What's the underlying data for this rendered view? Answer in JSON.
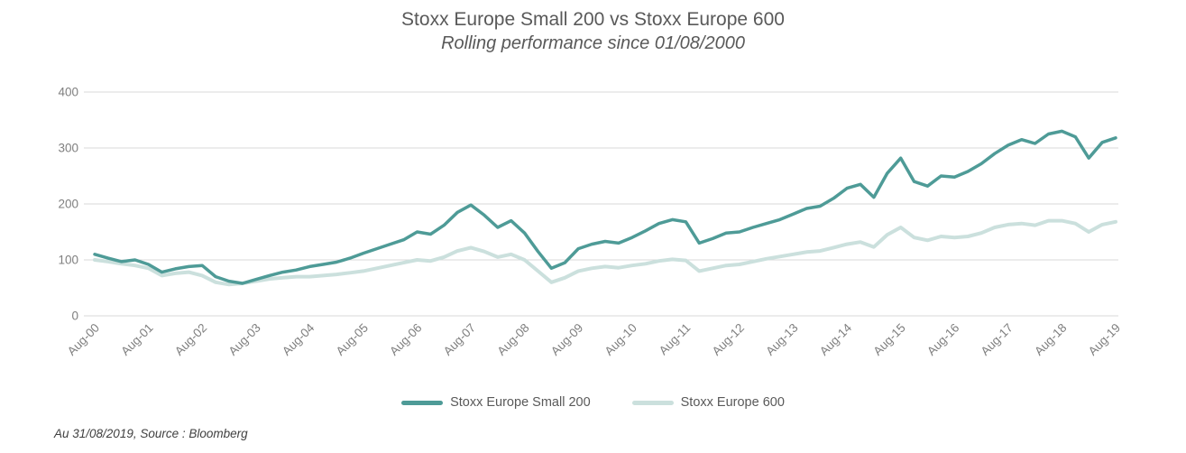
{
  "header": {
    "title": "Stoxx Europe Small 200 vs Stoxx Europe 600",
    "subtitle": "Rolling performance since 01/08/2000"
  },
  "footer": {
    "source_note": "Au 31/08/2019, Source :  Bloomberg"
  },
  "chart_data": {
    "type": "line",
    "title": "Stoxx Europe Small 200 vs Stoxx Europe 600",
    "subtitle": "Rolling performance since 01/08/2000",
    "xlabel": "",
    "ylabel": "",
    "ylim": [
      0,
      400
    ],
    "y_ticks": [
      0,
      100,
      200,
      300,
      400
    ],
    "grid": "horizontal",
    "grid_color": "#d9d9d9",
    "axis_label_color": "#7f7f7f",
    "legend_position": "bottom",
    "x_tick_labels": [
      "Aug-00",
      "Aug-01",
      "Aug-02",
      "Aug-03",
      "Aug-04",
      "Aug-05",
      "Aug-06",
      "Aug-07",
      "Aug-08",
      "Aug-09",
      "Aug-10",
      "Aug-11",
      "Aug-12",
      "Aug-13",
      "Aug-14",
      "Aug-15",
      "Aug-16",
      "Aug-17",
      "Aug-18",
      "Aug-19"
    ],
    "x_start_years": 0,
    "x_step_years": 0.25,
    "series": [
      {
        "name": "Stoxx Europe Small 200",
        "color": "#4e9b97",
        "stroke_width": 3.5,
        "values": [
          110,
          103,
          97,
          100,
          92,
          78,
          84,
          88,
          90,
          70,
          62,
          58,
          65,
          72,
          78,
          82,
          88,
          92,
          96,
          103,
          112,
          120,
          128,
          136,
          150,
          146,
          162,
          185,
          198,
          180,
          158,
          170,
          148,
          115,
          85,
          95,
          120,
          128,
          133,
          130,
          140,
          152,
          165,
          172,
          168,
          130,
          138,
          148,
          150,
          158,
          165,
          172,
          182,
          192,
          196,
          210,
          228,
          235,
          212,
          255,
          282,
          240,
          232,
          250,
          248,
          258,
          272,
          290,
          305,
          315,
          308,
          325,
          330,
          320,
          282,
          310,
          318
        ]
      },
      {
        "name": "Stoxx Europe 600",
        "color": "#cbe0dd",
        "stroke_width": 4,
        "values": [
          100,
          97,
          93,
          90,
          85,
          72,
          76,
          78,
          72,
          60,
          56,
          58,
          62,
          66,
          68,
          70,
          70,
          72,
          74,
          77,
          80,
          85,
          90,
          95,
          100,
          98,
          105,
          116,
          122,
          115,
          105,
          110,
          100,
          80,
          60,
          68,
          80,
          85,
          88,
          86,
          90,
          93,
          98,
          101,
          99,
          80,
          85,
          90,
          92,
          97,
          102,
          106,
          110,
          114,
          116,
          122,
          128,
          132,
          123,
          145,
          158,
          140,
          135,
          142,
          140,
          142,
          148,
          158,
          163,
          165,
          162,
          170,
          170,
          165,
          150,
          163,
          168
        ]
      }
    ]
  }
}
